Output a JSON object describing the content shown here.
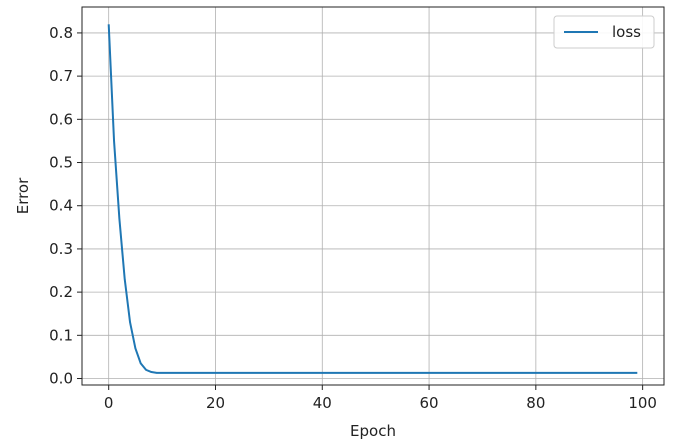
{
  "chart_data": {
    "type": "line",
    "title": "",
    "xlabel": "Epoch",
    "ylabel": "Error",
    "xlim": [
      -5,
      104
    ],
    "ylim": [
      -0.015,
      0.86
    ],
    "xticks": [
      0,
      20,
      40,
      60,
      80,
      100
    ],
    "yticks": [
      0.0,
      0.1,
      0.2,
      0.3,
      0.4,
      0.5,
      0.6,
      0.7,
      0.8
    ],
    "xtick_labels": [
      "0",
      "20",
      "40",
      "60",
      "80",
      "100"
    ],
    "ytick_labels": [
      "0.0",
      "0.1",
      "0.2",
      "0.3",
      "0.4",
      "0.5",
      "0.6",
      "0.7",
      "0.8"
    ],
    "grid": true,
    "legend_position": "top-right",
    "series": [
      {
        "name": "loss",
        "color": "#1f77b4",
        "x": [
          0,
          1,
          2,
          3,
          4,
          5,
          6,
          7,
          8,
          9,
          10,
          12,
          15,
          20,
          30,
          40,
          50,
          60,
          70,
          80,
          90,
          99
        ],
        "y": [
          0.82,
          0.55,
          0.37,
          0.23,
          0.13,
          0.07,
          0.035,
          0.02,
          0.015,
          0.013,
          0.013,
          0.013,
          0.013,
          0.013,
          0.013,
          0.013,
          0.013,
          0.013,
          0.013,
          0.013,
          0.013,
          0.013
        ]
      }
    ]
  }
}
